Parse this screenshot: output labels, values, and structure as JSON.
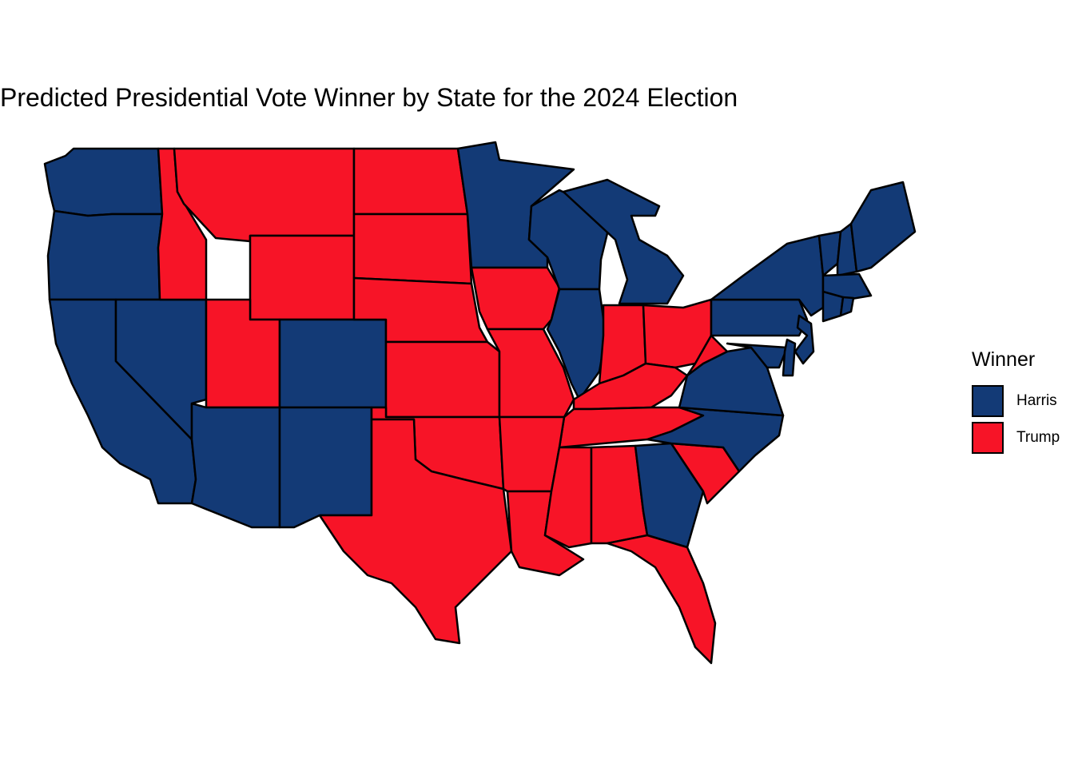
{
  "title": "Predicted Presidential Vote Winner by State for the 2024 Election",
  "legend": {
    "title": "Winner",
    "items": [
      {
        "label": "Harris",
        "color": "#133a76"
      },
      {
        "label": "Trump",
        "color": "#f71427"
      }
    ]
  },
  "map_data": {
    "type": "choropleth",
    "region": "contiguous United States",
    "winners": {
      "Harris": [
        "WA",
        "OR",
        "CA",
        "NV",
        "AZ",
        "CO",
        "NM",
        "MN",
        "WI",
        "IL",
        "MI",
        "GA",
        "VA",
        "NC",
        "PA",
        "NY",
        "NJ",
        "DE",
        "MD",
        "VT",
        "NH",
        "ME",
        "MA",
        "CT",
        "RI"
      ],
      "Trump": [
        "ID",
        "MT",
        "WY",
        "UT",
        "ND",
        "SD",
        "NE",
        "KS",
        "OK",
        "TX",
        "IA",
        "MO",
        "AR",
        "LA",
        "MS",
        "AL",
        "TN",
        "KY",
        "IN",
        "OH",
        "WV",
        "SC",
        "FL"
      ]
    }
  }
}
